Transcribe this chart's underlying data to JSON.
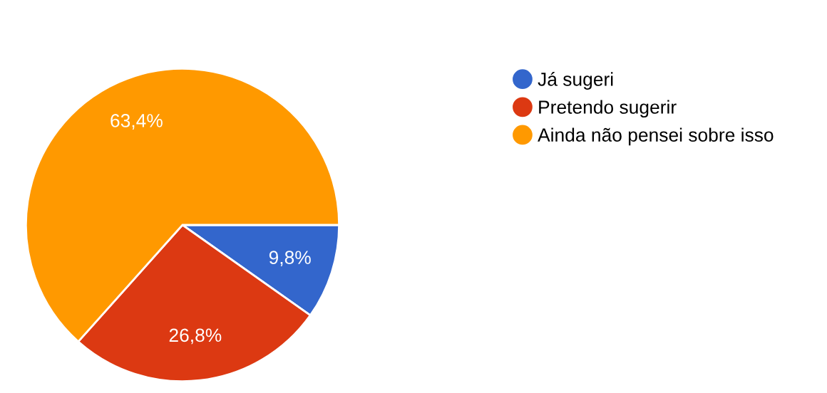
{
  "chart_data": {
    "type": "pie",
    "categories": [
      "Já sugeri",
      "Pretendo sugerir",
      "Ainda não pensei sobre isso"
    ],
    "values": [
      9.8,
      26.8,
      63.4
    ],
    "colors": [
      "#3366cc",
      "#dc3912",
      "#ff9900"
    ],
    "value_labels": [
      "9,8%",
      "26,8%",
      "63,4%"
    ],
    "legend": "right"
  }
}
